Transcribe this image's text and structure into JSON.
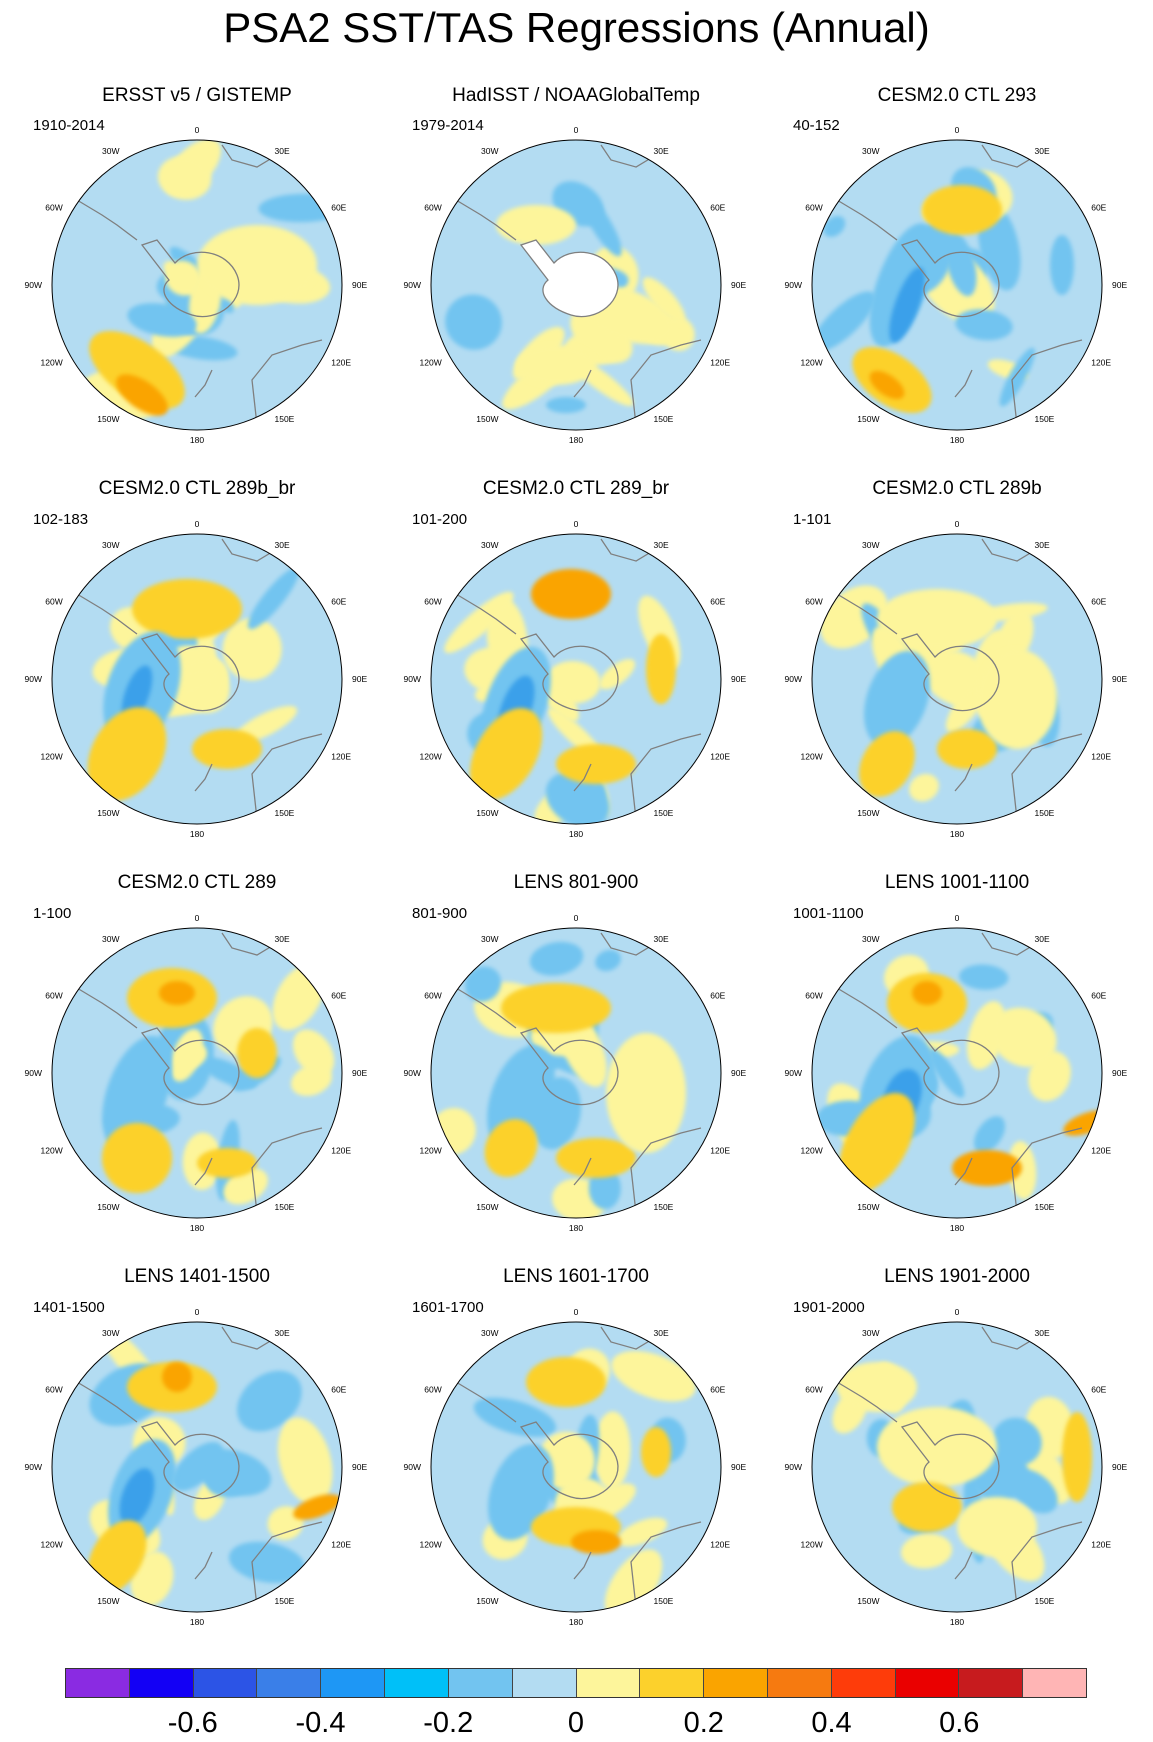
{
  "title": "PSA2 SST/TAS Regressions (Annual)",
  "colors": {
    "ocean_light_blue": "#b3dcf2",
    "cold_mid": "#72c4f0",
    "cold_strong": "#3aa0ea",
    "cold_extreme": "#1e8ff0",
    "warm_pale": "#fdf59b",
    "warm_mid": "#fcd12c",
    "warm_strong": "#faa400",
    "warm_extreme": "#f67a10",
    "land_white": "#ffffff",
    "coast_gray": "#7f7f7f"
  },
  "longitude_labels": [
    "0",
    "30E",
    "60E",
    "90E",
    "120E",
    "150E",
    "180",
    "150W",
    "120W",
    "90W",
    "60W",
    "30W"
  ],
  "panels": [
    {
      "title": "ERSST v5 / GISTEMP",
      "period": "1910-2014"
    },
    {
      "title": "HadISST / NOAAGlobalTemp",
      "period": "1979-2014"
    },
    {
      "title": "CESM2.0 CTL 293",
      "period": "40-152"
    },
    {
      "title": "CESM2.0 CTL 289b_br",
      "period": "102-183"
    },
    {
      "title": "CESM2.0 CTL 289_br",
      "period": "101-200"
    },
    {
      "title": "CESM2.0 CTL 289b",
      "period": "1-101"
    },
    {
      "title": "CESM2.0 CTL 289",
      "period": "1-100"
    },
    {
      "title": "LENS 801-900",
      "period": "801-900"
    },
    {
      "title": "LENS 1001-1100",
      "period": "1001-1100"
    },
    {
      "title": "LENS 1401-1500",
      "period": "1401-1500"
    },
    {
      "title": "LENS 1601-1700",
      "period": "1601-1700"
    },
    {
      "title": "LENS 1901-2000",
      "period": "1901-2000"
    }
  ],
  "colorbar": {
    "colors": [
      "#8a2be2",
      "#1300f5",
      "#2c54e6",
      "#3a7fe8",
      "#1e97f5",
      "#00c0f8",
      "#72c4f0",
      "#b3dcf2",
      "#fdf59b",
      "#fcd12c",
      "#faa400",
      "#f67a10",
      "#fe3c0a",
      "#ea0000",
      "#c71b1e",
      "#ffb5b5"
    ],
    "ticks": [
      "-0.6",
      "-0.4",
      "-0.2",
      "0",
      "0.2",
      "0.4",
      "0.6"
    ],
    "tick_values": [
      -0.6,
      -0.4,
      -0.2,
      0,
      0.2,
      0.4,
      0.6
    ]
  }
}
